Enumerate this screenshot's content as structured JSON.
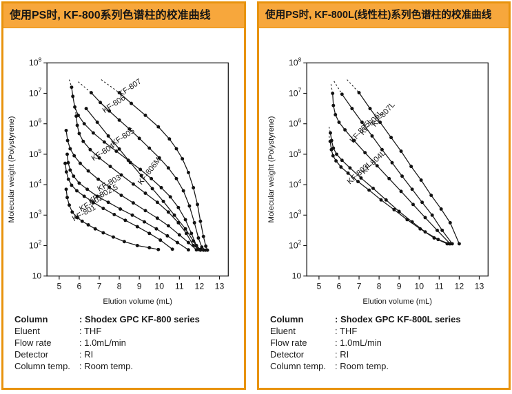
{
  "colors": {
    "panel_border": "#E8930D",
    "header_bg": "#F7A73C",
    "curve": "#1A1A1A"
  },
  "conditions": [
    [
      {
        "label": "Column",
        "value": ": Shodex GPC KF-800 series"
      },
      {
        "label": "Eluent",
        "value": ": THF"
      },
      {
        "label": "Flow rate",
        "value": ": 1.0mL/min"
      },
      {
        "label": "Detector",
        "value": ": RI"
      },
      {
        "label": "Column temp.",
        "value": ": Room temp."
      }
    ],
    [
      {
        "label": "Column",
        "value": ": Shodex GPC KF-800L series"
      },
      {
        "label": "Eluent",
        "value": ": THF"
      },
      {
        "label": "Flow rate",
        "value": ": 1.0mL/min"
      },
      {
        "label": "Detector",
        "value": ": RI"
      },
      {
        "label": "Column temp.",
        "value": ": Room temp."
      }
    ]
  ],
  "chart_data": [
    {
      "type": "line",
      "title": "使用PS时, KF-800系列色谱柱的校准曲线",
      "xlabel": "Elution volume (mL)",
      "ylabel": "Molecular weight (Polystyrene)",
      "x_units": "mL",
      "y_units": "log10(molecular weight)",
      "xlim": [
        4.4,
        13.4
      ],
      "x_ticks": [
        5,
        6,
        7,
        8,
        9,
        10,
        11,
        12,
        13
      ],
      "ylim_log10": [
        1,
        8
      ],
      "y_ticks": [
        "10^8",
        "10^7",
        "10^6",
        "10^5",
        "10^4",
        "10^3",
        "10^2",
        "10"
      ],
      "grid": false,
      "series": [
        {
          "name": "KF-807",
          "label_pos": [
            8.6,
            7.12
          ],
          "label_angle": -34,
          "dash": [
            [
              7.1,
              7.45
            ],
            [
              8.0,
              7.02
            ]
          ],
          "points": [
            [
              8.0,
              7.02
            ],
            [
              8.6,
              6.67
            ],
            [
              9.3,
              6.28
            ],
            [
              9.95,
              5.9
            ],
            [
              10.5,
              5.5
            ],
            [
              10.85,
              5.18
            ],
            [
              11.15,
              4.85
            ],
            [
              11.45,
              4.4
            ],
            [
              11.7,
              3.9
            ],
            [
              11.9,
              3.35
            ],
            [
              12.05,
              2.8
            ],
            [
              12.2,
              2.3
            ],
            [
              12.32,
              1.98
            ],
            [
              12.4,
              1.85
            ]
          ]
        },
        {
          "name": "KF-806",
          "label_pos": [
            7.8,
            6.58
          ],
          "label_angle": -34,
          "dash": [
            [
              5.95,
              7.38
            ],
            [
              6.6,
              7.02
            ]
          ],
          "points": [
            [
              6.6,
              7.02
            ],
            [
              7.05,
              6.7
            ],
            [
              7.5,
              6.42
            ],
            [
              8.0,
              6.12
            ],
            [
              8.5,
              5.83
            ],
            [
              9.0,
              5.52
            ],
            [
              9.5,
              5.2
            ],
            [
              10.0,
              4.88
            ],
            [
              10.45,
              4.55
            ],
            [
              10.85,
              4.2
            ],
            [
              11.2,
              3.8
            ],
            [
              11.5,
              3.3
            ],
            [
              11.75,
              2.75
            ],
            [
              11.95,
              2.25
            ],
            [
              12.12,
              1.95
            ],
            [
              12.3,
              1.85
            ]
          ]
        },
        {
          "name": "KF-805",
          "label_pos": [
            8.25,
            5.5
          ],
          "label_angle": -33,
          "dash": [
            [
              5.5,
              7.45
            ],
            [
              5.62,
              7.2
            ]
          ],
          "points": [
            [
              5.62,
              7.2
            ],
            [
              5.68,
              6.9
            ],
            [
              5.78,
              6.55
            ],
            [
              5.95,
              6.28
            ],
            [
              6.25,
              6.0
            ],
            [
              6.7,
              5.7
            ],
            [
              7.25,
              5.4
            ],
            [
              7.85,
              5.1
            ],
            [
              8.45,
              4.8
            ],
            [
              9.05,
              4.5
            ],
            [
              9.6,
              4.2
            ],
            [
              10.1,
              3.9
            ],
            [
              10.55,
              3.6
            ],
            [
              10.95,
              3.25
            ],
            [
              11.3,
              2.85
            ],
            [
              11.6,
              2.4
            ],
            [
              11.85,
              2.0
            ],
            [
              12.05,
              1.87
            ],
            [
              12.2,
              1.85
            ]
          ]
        },
        {
          "name": "KF-806M",
          "label_pos": [
            9.6,
            4.4
          ],
          "label_angle": -52,
          "points": [
            [
              6.35,
              6.5
            ],
            [
              6.9,
              6.05
            ],
            [
              7.45,
              5.6
            ],
            [
              8.0,
              5.17
            ],
            [
              8.55,
              4.73
            ],
            [
              9.1,
              4.3
            ],
            [
              9.65,
              3.87
            ],
            [
              10.2,
              3.45
            ],
            [
              10.75,
              3.0
            ],
            [
              11.3,
              2.55
            ],
            [
              11.7,
              2.15
            ],
            [
              11.95,
              1.87
            ]
          ]
        },
        {
          "name": "KF-804",
          "label_pos": [
            7.25,
            5.0
          ],
          "label_angle": -33,
          "dash": [
            [
              5.8,
              6.5
            ],
            [
              5.85,
              6.25
            ]
          ],
          "points": [
            [
              5.85,
              6.25
            ],
            [
              5.9,
              5.95
            ],
            [
              6.0,
              5.68
            ],
            [
              6.2,
              5.42
            ],
            [
              6.55,
              5.15
            ],
            [
              7.0,
              4.88
            ],
            [
              7.55,
              4.6
            ],
            [
              8.1,
              4.32
            ],
            [
              8.7,
              4.02
            ],
            [
              9.3,
              3.72
            ],
            [
              9.9,
              3.42
            ],
            [
              10.45,
              3.1
            ],
            [
              10.95,
              2.75
            ],
            [
              11.35,
              2.4
            ],
            [
              11.7,
              2.0
            ],
            [
              12.05,
              1.85
            ]
          ]
        },
        {
          "name": "KF-803",
          "label_pos": [
            7.55,
            3.98
          ],
          "label_angle": -30,
          "points": [
            [
              5.35,
              5.78
            ],
            [
              5.42,
              5.45
            ],
            [
              5.55,
              5.18
            ],
            [
              5.75,
              4.95
            ],
            [
              6.05,
              4.7
            ],
            [
              6.45,
              4.45
            ],
            [
              6.95,
              4.18
            ],
            [
              7.5,
              3.92
            ],
            [
              8.1,
              3.65
            ],
            [
              8.7,
              3.4
            ],
            [
              9.3,
              3.15
            ],
            [
              9.9,
              2.9
            ],
            [
              10.45,
              2.65
            ],
            [
              11.0,
              2.35
            ],
            [
              11.45,
              2.1
            ],
            [
              11.85,
              1.86
            ]
          ]
        },
        {
          "name": "KF-802.5",
          "label_pos": [
            7.25,
            3.62
          ],
          "label_angle": -28,
          "points": [
            [
              5.4,
              5.0
            ],
            [
              5.45,
              4.72
            ],
            [
              5.55,
              4.48
            ],
            [
              5.72,
              4.28
            ],
            [
              6.0,
              4.05
            ],
            [
              6.4,
              3.85
            ],
            [
              6.9,
              3.62
            ],
            [
              7.45,
              3.42
            ],
            [
              8.05,
              3.2
            ],
            [
              8.65,
              3.0
            ],
            [
              9.25,
              2.78
            ],
            [
              9.85,
              2.55
            ],
            [
              10.4,
              2.32
            ],
            [
              10.9,
              2.1
            ],
            [
              11.45,
              1.86
            ]
          ]
        },
        {
          "name": "KF-802",
          "label_pos": [
            6.65,
            3.32
          ],
          "label_angle": -30,
          "points": [
            [
              5.3,
              4.7
            ],
            [
              5.36,
              4.42
            ],
            [
              5.46,
              4.18
            ],
            [
              5.62,
              3.98
            ],
            [
              5.88,
              3.8
            ],
            [
              6.25,
              3.62
            ],
            [
              6.7,
              3.42
            ],
            [
              7.2,
              3.22
            ],
            [
              7.75,
              3.02
            ],
            [
              8.3,
              2.83
            ],
            [
              8.9,
              2.62
            ],
            [
              9.5,
              2.4
            ],
            [
              10.05,
              2.18
            ],
            [
              10.65,
              1.88
            ]
          ]
        },
        {
          "name": "KF-801",
          "label_pos": [
            6.3,
            3.0
          ],
          "label_angle": -30,
          "points": [
            [
              5.35,
              3.85
            ],
            [
              5.4,
              3.58
            ],
            [
              5.5,
              3.33
            ],
            [
              5.65,
              3.1
            ],
            [
              5.88,
              2.93
            ],
            [
              6.15,
              2.8
            ],
            [
              6.45,
              2.68
            ],
            [
              6.8,
              2.55
            ],
            [
              7.2,
              2.42
            ],
            [
              7.7,
              2.28
            ],
            [
              8.25,
              2.13
            ],
            [
              8.9,
              2.0
            ],
            [
              9.5,
              1.93
            ],
            [
              9.95,
              1.87
            ]
          ]
        }
      ]
    },
    {
      "type": "line",
      "title": "使用PS时, KF-800L(线性柱)系列色谱柱的校准曲线",
      "xlabel": "Elution volume (mL)",
      "ylabel": "Molecular weight (Polystyrene)",
      "x_units": "mL",
      "y_units": "log10(molecular weight)",
      "xlim": [
        4.4,
        13.4
      ],
      "x_ticks": [
        5,
        6,
        7,
        8,
        9,
        10,
        11,
        12,
        13
      ],
      "ylim_log10": [
        1,
        8
      ],
      "y_ticks": [
        "10^8",
        "10^7",
        "10^6",
        "10^5",
        "10^4",
        "10^3",
        "10^2",
        "10"
      ],
      "grid": false,
      "series": [
        {
          "name": "KF-807L",
          "label_pos": [
            8.3,
            6.25
          ],
          "label_angle": -48,
          "dash": [
            [
              6.4,
              7.45
            ],
            [
              7.0,
              7.02
            ]
          ],
          "points": [
            [
              7.0,
              7.02
            ],
            [
              7.55,
              6.5
            ],
            [
              8.05,
              6.05
            ],
            [
              8.6,
              5.55
            ],
            [
              9.1,
              5.1
            ],
            [
              9.6,
              4.6
            ],
            [
              10.1,
              4.15
            ],
            [
              10.6,
              3.65
            ],
            [
              11.1,
              3.2
            ],
            [
              11.55,
              2.75
            ],
            [
              12.0,
              2.06
            ]
          ]
        },
        {
          "name": "KF-806L",
          "label_pos": [
            7.7,
            5.98
          ],
          "label_angle": -48,
          "dash": [
            [
              5.75,
              7.4
            ],
            [
              6.15,
              6.97
            ]
          ],
          "points": [
            [
              6.15,
              6.97
            ],
            [
              6.65,
              6.5
            ],
            [
              7.15,
              6.05
            ],
            [
              7.65,
              5.6
            ],
            [
              8.15,
              5.15
            ],
            [
              8.65,
              4.72
            ],
            [
              9.15,
              4.28
            ],
            [
              9.65,
              3.85
            ],
            [
              10.15,
              3.42
            ],
            [
              10.65,
              3.0
            ],
            [
              11.15,
              2.5
            ],
            [
              11.65,
              2.06
            ]
          ]
        },
        {
          "name": "KF-805L",
          "label_pos": [
            7.2,
            5.72
          ],
          "label_angle": -48,
          "dash": [
            [
              5.6,
              7.3
            ],
            [
              5.68,
              7.0
            ]
          ],
          "points": [
            [
              5.68,
              7.0
            ],
            [
              5.72,
              6.6
            ],
            [
              5.82,
              6.3
            ],
            [
              6.0,
              6.05
            ],
            [
              6.3,
              5.8
            ],
            [
              6.75,
              5.45
            ],
            [
              7.3,
              5.05
            ],
            [
              7.9,
              4.62
            ],
            [
              8.5,
              4.2
            ],
            [
              9.1,
              3.78
            ],
            [
              9.7,
              3.35
            ],
            [
              10.3,
              2.92
            ],
            [
              10.9,
              2.5
            ],
            [
              11.55,
              2.06
            ]
          ]
        },
        {
          "name": "KF-804L",
          "label_pos": [
            7.8,
            4.68
          ],
          "label_angle": -44,
          "dash": [
            [
              5.5,
              5.9
            ],
            [
              5.57,
              5.7
            ]
          ],
          "points": [
            [
              5.57,
              5.7
            ],
            [
              5.63,
              5.45
            ],
            [
              5.72,
              5.2
            ],
            [
              5.88,
              5.0
            ],
            [
              6.15,
              4.8
            ],
            [
              6.55,
              4.55
            ],
            [
              7.1,
              4.22
            ],
            [
              7.7,
              3.88
            ],
            [
              8.35,
              3.5
            ],
            [
              9.0,
              3.12
            ],
            [
              9.65,
              2.78
            ],
            [
              10.3,
              2.45
            ],
            [
              10.95,
              2.2
            ],
            [
              11.5,
              2.06
            ]
          ]
        },
        {
          "name": "KF-803L",
          "label_pos": [
            7.1,
            4.33
          ],
          "label_angle": -42,
          "dash": [
            [
              5.5,
              5.6
            ],
            [
              5.56,
              5.42
            ]
          ],
          "points": [
            [
              5.56,
              5.42
            ],
            [
              5.62,
              5.15
            ],
            [
              5.7,
              4.95
            ],
            [
              5.85,
              4.78
            ],
            [
              6.1,
              4.58
            ],
            [
              6.45,
              4.38
            ],
            [
              6.95,
              4.1
            ],
            [
              7.5,
              3.82
            ],
            [
              8.1,
              3.5
            ],
            [
              8.75,
              3.18
            ],
            [
              9.4,
              2.85
            ],
            [
              10.05,
              2.55
            ],
            [
              10.75,
              2.25
            ],
            [
              11.4,
              2.06
            ]
          ]
        }
      ]
    }
  ]
}
